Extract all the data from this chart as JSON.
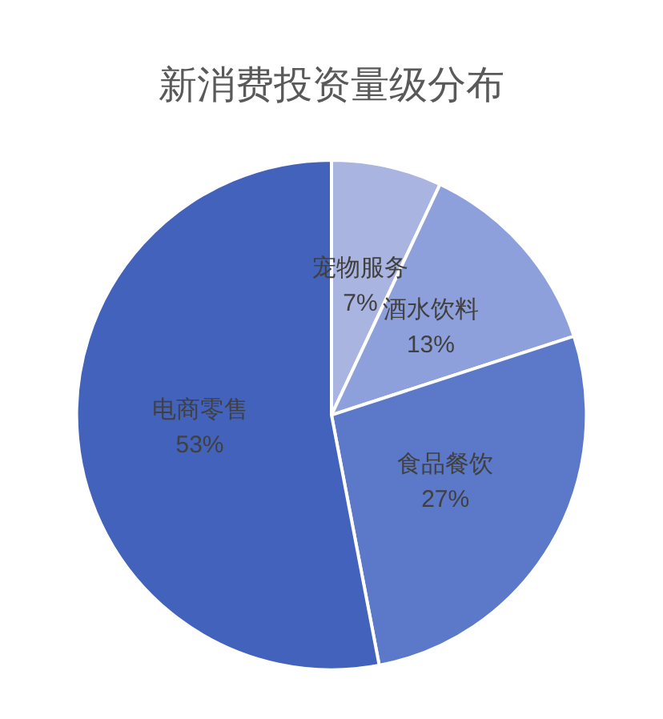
{
  "chart_data": {
    "type": "pie",
    "title": "新消费投资量级分布",
    "categories": [
      "宠物服务",
      "酒水饮料",
      "食品餐饮",
      "电商零售"
    ],
    "values": [
      7,
      13,
      27,
      53
    ],
    "colors": [
      "#a9b4e0",
      "#8ea0db",
      "#5b78c9",
      "#4262bb"
    ],
    "value_labels": [
      "7%",
      "13%",
      "27%",
      "53%"
    ],
    "legend": false
  }
}
